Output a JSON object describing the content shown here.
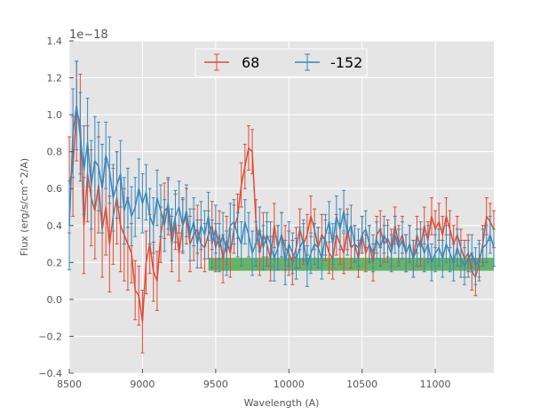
{
  "chart_data": {
    "type": "line",
    "title": "",
    "xlabel": "Wavelength (A)",
    "ylabel": "Flux (erg/s/cm^2/A)",
    "y_offset_label": "1e−18",
    "xlim": [
      8500,
      11400
    ],
    "ylim": [
      -0.4,
      1.4
    ],
    "x_ticks": [
      8500,
      9000,
      9500,
      10000,
      10500,
      11000
    ],
    "x_tick_labels": [
      "8500",
      "9000",
      "9500",
      "10000",
      "10500",
      "11000"
    ],
    "y_ticks": [
      -0.4,
      -0.2,
      0.0,
      0.2,
      0.4,
      0.6,
      0.8,
      1.0,
      1.2,
      1.4
    ],
    "y_tick_labels": [
      "−0.4",
      "−0.2",
      "0.0",
      "0.2",
      "0.4",
      "0.6",
      "0.8",
      "1.0",
      "1.2",
      "1.4"
    ],
    "grid": true,
    "legend_position": "top-center",
    "green_band": {
      "x_start": 9450,
      "x_end": 11400,
      "y_low": 0.155,
      "y_high": 0.225,
      "color": "#3aa13a"
    },
    "series": [
      {
        "name": "68",
        "color": "#e24a33",
        "x": [
          8500,
          8525,
          8550,
          8575,
          8600,
          8625,
          8650,
          8675,
          8700,
          8725,
          8750,
          8775,
          8800,
          8825,
          8850,
          8875,
          8900,
          8925,
          8950,
          8975,
          9000,
          9025,
          9050,
          9075,
          9100,
          9125,
          9150,
          9175,
          9200,
          9225,
          9250,
          9275,
          9300,
          9325,
          9350,
          9375,
          9400,
          9425,
          9450,
          9475,
          9500,
          9525,
          9550,
          9575,
          9600,
          9625,
          9650,
          9675,
          9700,
          9725,
          9750,
          9775,
          9800,
          9825,
          9850,
          9875,
          9900,
          9925,
          9950,
          9975,
          10000,
          10025,
          10050,
          10075,
          10100,
          10125,
          10150,
          10175,
          10200,
          10225,
          10250,
          10275,
          10300,
          10325,
          10350,
          10375,
          10400,
          10425,
          10450,
          10475,
          10500,
          10525,
          10550,
          10575,
          10600,
          10625,
          10650,
          10675,
          10700,
          10725,
          10750,
          10775,
          10800,
          10825,
          10850,
          10875,
          10900,
          10925,
          10950,
          10975,
          11000,
          11025,
          11050,
          11075,
          11100,
          11125,
          11150,
          11175,
          11200,
          11225,
          11250,
          11275,
          11300,
          11325,
          11350,
          11375,
          11400
        ],
        "values": [
          0.62,
          0.72,
          1.02,
          0.95,
          0.4,
          0.68,
          0.55,
          0.48,
          0.62,
          0.38,
          0.5,
          0.3,
          0.45,
          0.55,
          0.4,
          0.35,
          0.3,
          0.25,
          0.05,
          0.02,
          -0.12,
          0.2,
          0.3,
          0.15,
          0.1,
          0.35,
          0.48,
          0.5,
          0.3,
          0.42,
          0.25,
          0.4,
          0.45,
          0.3,
          0.35,
          0.38,
          0.3,
          0.28,
          0.35,
          0.4,
          0.28,
          0.35,
          0.22,
          0.32,
          0.25,
          0.38,
          0.45,
          0.62,
          0.72,
          0.82,
          0.8,
          0.42,
          0.25,
          0.35,
          0.3,
          0.22,
          0.4,
          0.28,
          0.35,
          0.28,
          0.25,
          0.2,
          0.28,
          0.38,
          0.3,
          0.35,
          0.45,
          0.38,
          0.28,
          0.35,
          0.32,
          0.25,
          0.22,
          0.35,
          0.3,
          0.25,
          0.38,
          0.28,
          0.3,
          0.22,
          0.35,
          0.25,
          0.3,
          0.2,
          0.35,
          0.38,
          0.3,
          0.33,
          0.28,
          0.4,
          0.3,
          0.35,
          0.25,
          0.3,
          0.22,
          0.35,
          0.28,
          0.4,
          0.32,
          0.45,
          0.38,
          0.42,
          0.35,
          0.45,
          0.38,
          0.3,
          0.35,
          0.28,
          0.22,
          0.25,
          0.15,
          0.12,
          0.2,
          0.3,
          0.45,
          0.42,
          0.38
        ],
        "errors": [
          0.26,
          0.27,
          0.27,
          0.27,
          0.26,
          0.26,
          0.26,
          0.26,
          0.26,
          0.26,
          0.26,
          0.26,
          0.26,
          0.25,
          0.25,
          0.25,
          0.25,
          0.16,
          0.16,
          0.16,
          0.17,
          0.17,
          0.16,
          0.16,
          0.16,
          0.15,
          0.15,
          0.15,
          0.15,
          0.15,
          0.15,
          0.15,
          0.15,
          0.15,
          0.14,
          0.13,
          0.13,
          0.13,
          0.13,
          0.13,
          0.13,
          0.13,
          0.13,
          0.13,
          0.13,
          0.13,
          0.12,
          0.12,
          0.12,
          0.12,
          0.12,
          0.12,
          0.12,
          0.12,
          0.12,
          0.12,
          0.12,
          0.12,
          0.12,
          0.12,
          0.12,
          0.12,
          0.11,
          0.11,
          0.11,
          0.11,
          0.11,
          0.11,
          0.11,
          0.11,
          0.11,
          0.11,
          0.11,
          0.11,
          0.11,
          0.11,
          0.11,
          0.11,
          0.1,
          0.1,
          0.1,
          0.1,
          0.1,
          0.1,
          0.1,
          0.1,
          0.1,
          0.1,
          0.1,
          0.1,
          0.1,
          0.1,
          0.1,
          0.1,
          0.1,
          0.1,
          0.1,
          0.1,
          0.1,
          0.1,
          0.1,
          0.1,
          0.1,
          0.1,
          0.1,
          0.1,
          0.1,
          0.1,
          0.1,
          0.1,
          0.1,
          0.1,
          0.1,
          0.1,
          0.1,
          0.1,
          0.1
        ]
      },
      {
        "name": "-152",
        "color": "#348abd",
        "x": [
          8500,
          8525,
          8550,
          8575,
          8600,
          8625,
          8650,
          8675,
          8700,
          8725,
          8750,
          8775,
          8800,
          8825,
          8850,
          8875,
          8900,
          8925,
          8950,
          8975,
          9000,
          9025,
          9050,
          9075,
          9100,
          9125,
          9150,
          9175,
          9200,
          9225,
          9250,
          9275,
          9300,
          9325,
          9350,
          9375,
          9400,
          9425,
          9450,
          9475,
          9500,
          9525,
          9550,
          9575,
          9600,
          9625,
          9650,
          9675,
          9700,
          9725,
          9750,
          9775,
          9800,
          9825,
          9850,
          9875,
          9900,
          9925,
          9950,
          9975,
          10000,
          10025,
          10050,
          10075,
          10100,
          10125,
          10150,
          10175,
          10200,
          10225,
          10250,
          10275,
          10300,
          10325,
          10350,
          10375,
          10400,
          10425,
          10450,
          10475,
          10500,
          10525,
          10550,
          10575,
          10600,
          10625,
          10650,
          10675,
          10700,
          10725,
          10750,
          10775,
          10800,
          10825,
          10850,
          10875,
          10900,
          10925,
          10950,
          10975,
          11000,
          11025,
          11050,
          11075,
          11100,
          11125,
          11150,
          11175,
          11200,
          11225,
          11250,
          11275,
          11300,
          11325,
          11350,
          11375,
          11400
        ],
        "values": [
          0.4,
          0.9,
          1.05,
          0.88,
          0.7,
          0.85,
          0.62,
          0.75,
          0.72,
          0.6,
          0.78,
          0.7,
          0.55,
          0.62,
          0.68,
          0.48,
          0.55,
          0.45,
          0.5,
          0.6,
          0.52,
          0.58,
          0.45,
          0.4,
          0.55,
          0.48,
          0.4,
          0.52,
          0.35,
          0.45,
          0.5,
          0.4,
          0.48,
          0.35,
          0.42,
          0.3,
          0.4,
          0.35,
          0.45,
          0.3,
          0.38,
          0.28,
          0.35,
          0.25,
          0.4,
          0.42,
          0.35,
          0.3,
          0.42,
          0.35,
          0.25,
          0.3,
          0.38,
          0.28,
          0.35,
          0.3,
          0.22,
          0.28,
          0.35,
          0.2,
          0.3,
          0.25,
          0.22,
          0.28,
          0.32,
          0.18,
          0.25,
          0.3,
          0.28,
          0.22,
          0.35,
          0.42,
          0.3,
          0.45,
          0.38,
          0.48,
          0.35,
          0.4,
          0.3,
          0.28,
          0.35,
          0.38,
          0.3,
          0.25,
          0.32,
          0.28,
          0.35,
          0.3,
          0.25,
          0.35,
          0.28,
          0.32,
          0.25,
          0.3,
          0.22,
          0.28,
          0.32,
          0.25,
          0.3,
          0.2,
          0.25,
          0.28,
          0.22,
          0.3,
          0.25,
          0.2,
          0.28,
          0.22,
          0.18,
          0.22,
          0.25,
          0.18,
          0.22,
          0.28,
          0.3,
          0.35,
          0.28
        ],
        "errors": [
          0.24,
          0.24,
          0.24,
          0.24,
          0.24,
          0.24,
          0.24,
          0.24,
          0.24,
          0.24,
          0.18,
          0.18,
          0.18,
          0.18,
          0.18,
          0.18,
          0.16,
          0.16,
          0.16,
          0.16,
          0.16,
          0.15,
          0.15,
          0.15,
          0.15,
          0.14,
          0.14,
          0.14,
          0.14,
          0.14,
          0.14,
          0.14,
          0.14,
          0.14,
          0.13,
          0.13,
          0.13,
          0.13,
          0.13,
          0.13,
          0.13,
          0.13,
          0.12,
          0.12,
          0.12,
          0.12,
          0.12,
          0.12,
          0.12,
          0.12,
          0.12,
          0.12,
          0.12,
          0.12,
          0.12,
          0.12,
          0.12,
          0.12,
          0.12,
          0.12,
          0.12,
          0.11,
          0.11,
          0.11,
          0.11,
          0.11,
          0.11,
          0.11,
          0.11,
          0.11,
          0.11,
          0.11,
          0.11,
          0.11,
          0.11,
          0.11,
          0.11,
          0.11,
          0.1,
          0.1,
          0.1,
          0.1,
          0.1,
          0.1,
          0.1,
          0.1,
          0.1,
          0.1,
          0.1,
          0.1,
          0.1,
          0.1,
          0.1,
          0.1,
          0.1,
          0.1,
          0.1,
          0.1,
          0.1,
          0.1,
          0.1,
          0.1,
          0.1,
          0.1,
          0.1,
          0.1,
          0.1,
          0.1,
          0.1,
          0.1,
          0.1,
          0.1,
          0.1,
          0.1,
          0.1,
          0.1,
          0.1
        ]
      }
    ]
  }
}
